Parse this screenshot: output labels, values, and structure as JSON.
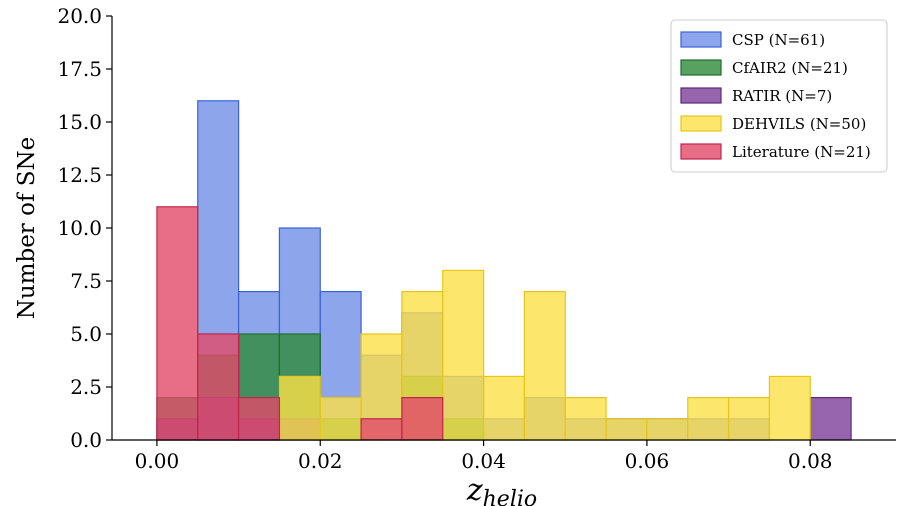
{
  "chart_data": {
    "type": "bar",
    "subtype": "overlaid-histogram",
    "title": "",
    "xlabel": "z_helio",
    "ylabel": "Number of SNe",
    "xlim": [
      -0.0055,
      0.0905
    ],
    "ylim": [
      0,
      20
    ],
    "xticks": [
      "0.00",
      "0.02",
      "0.04",
      "0.06",
      "0.08"
    ],
    "yticks": [
      "0.0",
      "2.5",
      "5.0",
      "7.5",
      "10.0",
      "12.5",
      "15.0",
      "17.5",
      "20.0"
    ],
    "grid": false,
    "legend_position": "top-right",
    "bin_width": 0.005,
    "series": [
      {
        "name": "CSP (N=61)",
        "color": "#6f8fe6",
        "edge": "#3a63d8",
        "bins": [
          [
            0.005,
            16
          ],
          [
            0.01,
            7
          ],
          [
            0.015,
            10
          ],
          [
            0.02,
            7
          ],
          [
            0.025,
            4
          ],
          [
            0.03,
            6
          ],
          [
            0.035,
            3
          ],
          [
            0.04,
            1
          ],
          [
            0.045,
            2
          ],
          [
            0.05,
            1
          ],
          [
            0.055,
            1
          ],
          [
            0.06,
            1
          ],
          [
            0.065,
            1
          ],
          [
            0.07,
            1
          ]
        ]
      },
      {
        "name": "CfAIR2 (N=21)",
        "color": "#2e8b3a",
        "edge": "#1f6e2b",
        "bins": [
          [
            0.0,
            2
          ],
          [
            0.005,
            4
          ],
          [
            0.01,
            5
          ],
          [
            0.015,
            5
          ],
          [
            0.02,
            1
          ],
          [
            0.03,
            3
          ],
          [
            0.035,
            1
          ]
        ]
      },
      {
        "name": "RATIR (N=7)",
        "color": "#7d3f9a",
        "edge": "#5b2a78",
        "bins": [
          [
            0.0,
            1
          ],
          [
            0.005,
            2
          ],
          [
            0.01,
            1
          ],
          [
            0.015,
            1
          ],
          [
            0.08,
            2
          ]
        ]
      },
      {
        "name": "DEHVILS (N=50)",
        "color": "#fde047",
        "edge": "#e7c51a",
        "bins": [
          [
            0.015,
            3
          ],
          [
            0.02,
            2
          ],
          [
            0.025,
            5
          ],
          [
            0.03,
            7
          ],
          [
            0.035,
            8
          ],
          [
            0.04,
            3
          ],
          [
            0.045,
            7
          ],
          [
            0.05,
            2
          ],
          [
            0.055,
            1
          ],
          [
            0.06,
            1
          ],
          [
            0.065,
            2
          ],
          [
            0.07,
            2
          ],
          [
            0.075,
            3
          ]
        ]
      },
      {
        "name": "Literature (N=21)",
        "color": "#e24a6a",
        "edge": "#c0264b",
        "bins": [
          [
            0.0,
            11
          ],
          [
            0.005,
            5
          ],
          [
            0.01,
            2
          ],
          [
            0.025,
            1
          ],
          [
            0.03,
            2
          ]
        ]
      }
    ]
  }
}
